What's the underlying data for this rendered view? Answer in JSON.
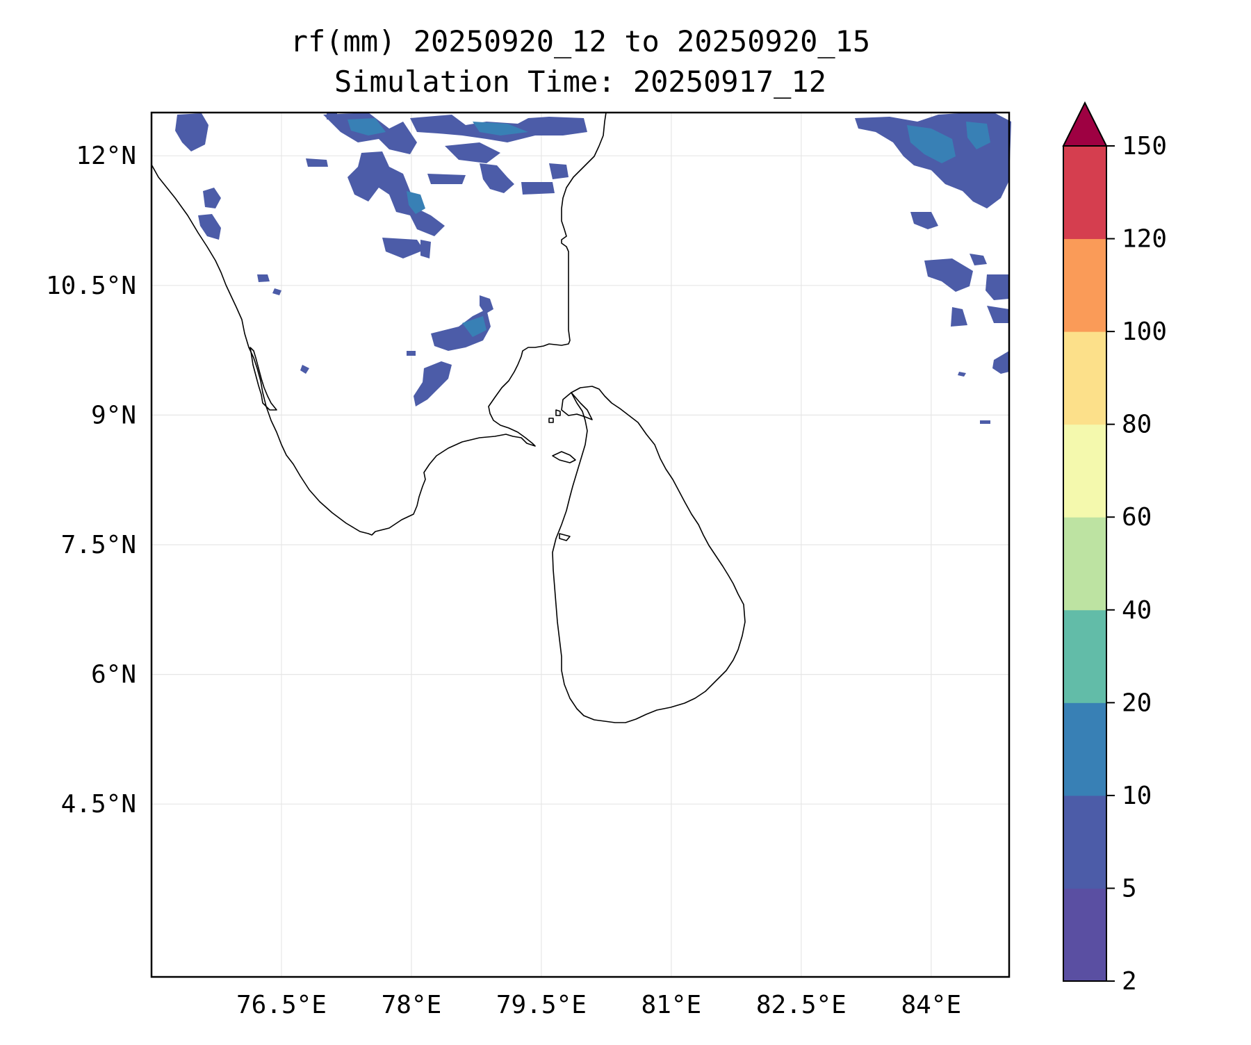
{
  "title_line1": "rf(mm) 20250920_12 to 20250920_15",
  "title_line2": "Simulation Time: 20250917_12",
  "map": {
    "lon_range": [
      75.0,
      84.9
    ],
    "lat_range": [
      2.5,
      12.5
    ],
    "lon_ticks": [
      {
        "value": 76.5,
        "label": "76.5°E"
      },
      {
        "value": 78.0,
        "label": "78°E"
      },
      {
        "value": 79.5,
        "label": "79.5°E"
      },
      {
        "value": 81.0,
        "label": "81°E"
      },
      {
        "value": 82.5,
        "label": "82.5°E"
      },
      {
        "value": 84.0,
        "label": "84°E"
      }
    ],
    "lat_ticks": [
      {
        "value": 12.0,
        "label": "12°N"
      },
      {
        "value": 10.5,
        "label": "10.5°N"
      },
      {
        "value": 9.0,
        "label": "9°N"
      },
      {
        "value": 7.5,
        "label": "7.5°N"
      },
      {
        "value": 6.0,
        "label": "6°N"
      },
      {
        "value": 4.5,
        "label": "4.5°N"
      }
    ],
    "gridlines": true
  },
  "colorbar": {
    "levels": [
      "2",
      "5",
      "10",
      "20",
      "40",
      "60",
      "80",
      "100",
      "120",
      "150"
    ],
    "colors": [
      "#5a4fa2",
      "#4c5ca8",
      "#3880b5",
      "#62bca8",
      "#bde3a2",
      "#f4f9ad",
      "#fce08a",
      "#fa9b58",
      "#d53e4f"
    ],
    "extend_color": "#9e0142",
    "extend": "max"
  }
}
